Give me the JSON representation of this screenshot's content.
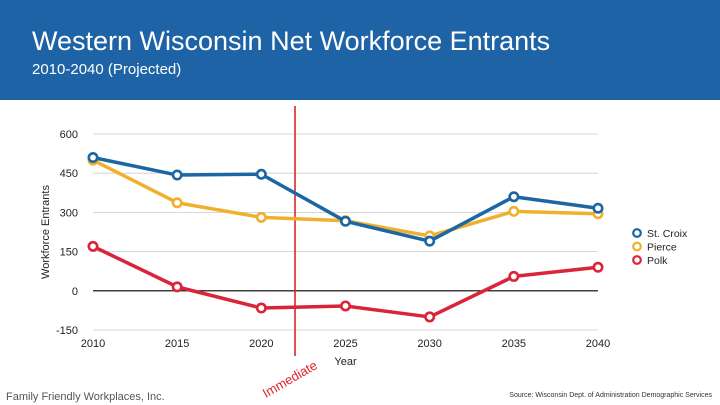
{
  "header": {
    "title": "Western Wisconsin Net Workforce Entrants",
    "subtitle": "2010-2040 (Projected)"
  },
  "footer": {
    "left": "Family Friendly Workplaces, Inc.",
    "right": "Source: Wisconsin Dept. of Administration Demographic Services"
  },
  "colors": {
    "header_bg": "#1d63a6",
    "st_croix": "#1c66a3",
    "pierce": "#f0b02e",
    "polk": "#d9243a",
    "marker": "#e0222c"
  },
  "chart_data": {
    "type": "line",
    "xlabel": "Year",
    "ylabel": "Workforce Entrants",
    "x": [
      2010,
      2015,
      2020,
      2025,
      2030,
      2035,
      2040
    ],
    "ylim": [
      -150,
      600
    ],
    "yticks": [
      -150,
      0,
      150,
      300,
      450,
      600
    ],
    "grid": true,
    "legend": "right",
    "series": [
      {
        "name": "St. Croix",
        "color_key": "st_croix",
        "values": [
          510,
          443,
          446,
          266,
          190,
          360,
          316
        ]
      },
      {
        "name": "Pierce",
        "color_key": "pierce",
        "values": [
          500,
          337,
          281,
          268,
          210,
          304,
          295
        ]
      },
      {
        "name": "Polk",
        "color_key": "polk",
        "values": [
          170,
          15,
          -66,
          -58,
          -100,
          55,
          90
        ]
      }
    ],
    "marker": {
      "label": "Immediate",
      "x": 2022
    }
  }
}
